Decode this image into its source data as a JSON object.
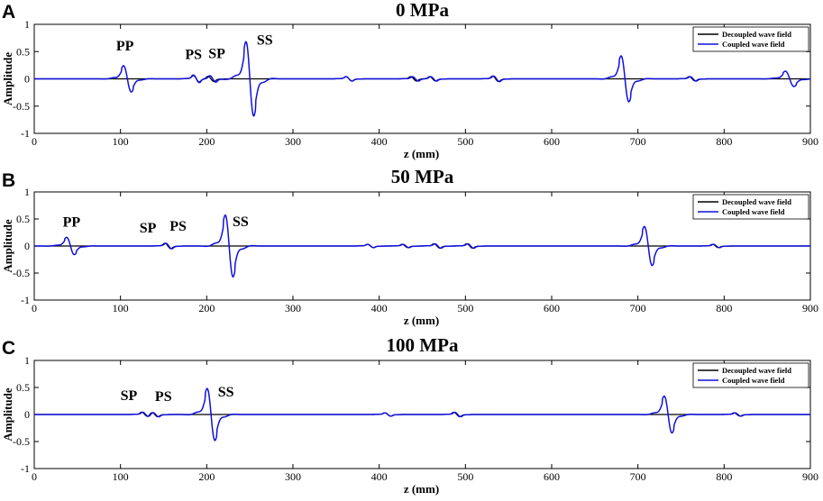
{
  "figure": {
    "colors": {
      "axis": "#000000",
      "decoupled": "#000000",
      "coupled": "#1010e0"
    }
  },
  "chart_data": [
    {
      "type": "line",
      "panel_label": "A",
      "title": "0 MPa",
      "xlabel": "z (mm)",
      "ylabel": "Amplitude",
      "xlim": [
        0,
        900
      ],
      "ylim": [
        -1,
        1
      ],
      "xticks": [
        "0",
        "100",
        "200",
        "300",
        "400",
        "500",
        "600",
        "700",
        "800",
        "900"
      ],
      "yticks": [
        "-1",
        "-0.5",
        "0",
        "0.5",
        "1"
      ],
      "grid": false,
      "legend_position": "top-right",
      "annotations": [
        {
          "text": "PP",
          "x": 95,
          "y": 0.52
        },
        {
          "text": "PS",
          "x": 175,
          "y": 0.36
        },
        {
          "text": "SP",
          "x": 202,
          "y": 0.38
        },
        {
          "text": "SS",
          "x": 258,
          "y": 0.63
        }
      ],
      "series": [
        {
          "name": "Decoupled wave field",
          "pulses": [
            {
              "z": 188,
              "a": 0.06,
              "w": 3.5
            },
            {
              "z": 205,
              "a": 0.05,
              "w": 3.5
            },
            {
              "z": 365,
              "a": 0.04,
              "w": 3.5
            },
            {
              "z": 440,
              "a": 0.04,
              "w": 3.5
            },
            {
              "z": 462,
              "a": 0.04,
              "w": 3.5
            },
            {
              "z": 535,
              "a": 0.05,
              "w": 3.5
            },
            {
              "z": 763,
              "a": 0.04,
              "w": 3.5
            }
          ]
        },
        {
          "name": "Coupled wave field",
          "pulses": [
            {
              "z": 108,
              "a": 0.24,
              "w": 4.5
            },
            {
              "z": 188,
              "a": 0.07,
              "w": 3.5
            },
            {
              "z": 207,
              "a": 0.06,
              "w": 3.5
            },
            {
              "z": 250,
              "a": 0.68,
              "w": 4.5
            },
            {
              "z": 365,
              "a": 0.04,
              "w": 3.5
            },
            {
              "z": 442,
              "a": 0.04,
              "w": 3.5
            },
            {
              "z": 463,
              "a": 0.04,
              "w": 3.5
            },
            {
              "z": 536,
              "a": 0.05,
              "w": 3.5
            },
            {
              "z": 685,
              "a": 0.42,
              "w": 4.5
            },
            {
              "z": 764,
              "a": 0.04,
              "w": 3.5
            },
            {
              "z": 876,
              "a": 0.14,
              "w": 5.0
            }
          ]
        }
      ]
    },
    {
      "type": "line",
      "panel_label": "B",
      "title": "50 MPa",
      "xlabel": "z (mm)",
      "ylabel": "Amplitude",
      "xlim": [
        0,
        900
      ],
      "ylim": [
        -1,
        1
      ],
      "xticks": [
        "0",
        "100",
        "200",
        "300",
        "400",
        "500",
        "600",
        "700",
        "800",
        "900"
      ],
      "yticks": [
        "-1",
        "-0.5",
        "0",
        "0.5",
        "1"
      ],
      "grid": false,
      "legend_position": "top-right",
      "annotations": [
        {
          "text": "PP",
          "x": 33,
          "y": 0.36
        },
        {
          "text": "SP",
          "x": 122,
          "y": 0.25
        },
        {
          "text": "PS",
          "x": 157,
          "y": 0.28
        },
        {
          "text": "SS",
          "x": 230,
          "y": 0.37
        }
      ],
      "series": [
        {
          "name": "Decoupled wave field",
          "pulses": [
            {
              "z": 155,
              "a": 0.05,
              "w": 3.5
            },
            {
              "z": 390,
              "a": 0.03,
              "w": 3.5
            },
            {
              "z": 430,
              "a": 0.03,
              "w": 3.5
            },
            {
              "z": 467,
              "a": 0.04,
              "w": 3.5
            },
            {
              "z": 505,
              "a": 0.04,
              "w": 3.5
            },
            {
              "z": 790,
              "a": 0.03,
              "w": 3.5
            }
          ]
        },
        {
          "name": "Coupled wave field",
          "pulses": [
            {
              "z": 42,
              "a": 0.16,
              "w": 4.5
            },
            {
              "z": 156,
              "a": 0.05,
              "w": 3.5
            },
            {
              "z": 226,
              "a": 0.57,
              "w": 4.5
            },
            {
              "z": 390,
              "a": 0.03,
              "w": 3.5
            },
            {
              "z": 431,
              "a": 0.03,
              "w": 3.5
            },
            {
              "z": 468,
              "a": 0.04,
              "w": 3.5
            },
            {
              "z": 506,
              "a": 0.04,
              "w": 3.5
            },
            {
              "z": 712,
              "a": 0.36,
              "w": 4.5
            },
            {
              "z": 791,
              "a": 0.03,
              "w": 3.5
            }
          ]
        }
      ]
    },
    {
      "type": "line",
      "panel_label": "C",
      "title": "100 MPa",
      "xlabel": "z (mm)",
      "ylabel": "Amplitude",
      "xlim": [
        0,
        900
      ],
      "ylim": [
        -1,
        1
      ],
      "xticks": [
        "0",
        "100",
        "200",
        "300",
        "400",
        "500",
        "600",
        "700",
        "800",
        "900"
      ],
      "yticks": [
        "-1",
        "-0.5",
        "0",
        "0.5",
        "1"
      ],
      "grid": false,
      "legend_position": "top-right",
      "annotations": [
        {
          "text": "SP",
          "x": 100,
          "y": 0.27
        },
        {
          "text": "PS",
          "x": 140,
          "y": 0.25
        },
        {
          "text": "SS",
          "x": 213,
          "y": 0.33
        }
      ],
      "series": [
        {
          "name": "Decoupled wave field",
          "pulses": [
            {
              "z": 128,
              "a": 0.04,
              "w": 3.5
            },
            {
              "z": 140,
              "a": 0.04,
              "w": 3.5
            },
            {
              "z": 410,
              "a": 0.03,
              "w": 3.5
            },
            {
              "z": 490,
              "a": 0.04,
              "w": 3.5
            },
            {
              "z": 815,
              "a": 0.03,
              "w": 3.5
            }
          ]
        },
        {
          "name": "Coupled wave field",
          "pulses": [
            {
              "z": 129,
              "a": 0.04,
              "w": 3.5
            },
            {
              "z": 141,
              "a": 0.04,
              "w": 3.5
            },
            {
              "z": 205,
              "a": 0.48,
              "w": 4.5
            },
            {
              "z": 410,
              "a": 0.03,
              "w": 3.5
            },
            {
              "z": 491,
              "a": 0.04,
              "w": 3.5
            },
            {
              "z": 735,
              "a": 0.34,
              "w": 4.5
            },
            {
              "z": 816,
              "a": 0.03,
              "w": 3.5
            }
          ]
        }
      ]
    }
  ]
}
